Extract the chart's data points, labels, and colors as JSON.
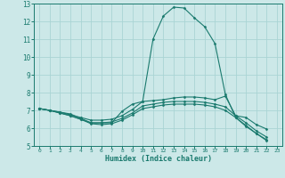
{
  "title": "",
  "xlabel": "Humidex (Indice chaleur)",
  "bg_color": "#cce8e8",
  "grid_color": "#aad4d4",
  "line_color": "#1a7a6e",
  "xlim": [
    -0.5,
    23.5
  ],
  "ylim": [
    5,
    13
  ],
  "xticks": [
    0,
    1,
    2,
    3,
    4,
    5,
    6,
    7,
    8,
    9,
    10,
    11,
    12,
    13,
    14,
    15,
    16,
    17,
    18,
    19,
    20,
    21,
    22,
    23
  ],
  "yticks": [
    5,
    6,
    7,
    8,
    9,
    10,
    11,
    12,
    13
  ],
  "lines": [
    {
      "x": [
        0,
        1,
        2,
        3,
        4,
        5,
        6,
        7,
        8,
        9,
        10,
        11,
        12,
        13,
        14,
        15,
        16,
        17,
        18,
        19,
        20,
        21,
        22
      ],
      "y": [
        7.1,
        7.0,
        6.9,
        6.8,
        6.55,
        6.3,
        6.3,
        6.3,
        6.95,
        7.35,
        7.5,
        11.0,
        12.3,
        12.8,
        12.75,
        12.2,
        11.7,
        10.75,
        7.9,
        6.6,
        6.1,
        5.7,
        5.3
      ]
    },
    {
      "x": [
        0,
        1,
        2,
        3,
        4,
        5,
        6,
        7,
        8,
        9,
        10,
        11,
        12,
        13,
        14,
        15,
        16,
        17,
        18,
        19,
        20,
        21,
        22
      ],
      "y": [
        7.1,
        7.0,
        6.9,
        6.75,
        6.6,
        6.45,
        6.45,
        6.5,
        6.7,
        7.05,
        7.5,
        7.55,
        7.6,
        7.7,
        7.75,
        7.75,
        7.7,
        7.6,
        7.8,
        6.7,
        6.6,
        6.2,
        5.95
      ]
    },
    {
      "x": [
        0,
        1,
        2,
        3,
        4,
        5,
        6,
        7,
        8,
        9,
        10,
        11,
        12,
        13,
        14,
        15,
        16,
        17,
        18,
        19,
        20,
        21,
        22
      ],
      "y": [
        7.1,
        7.0,
        6.85,
        6.7,
        6.5,
        6.3,
        6.3,
        6.35,
        6.55,
        6.85,
        7.25,
        7.35,
        7.45,
        7.5,
        7.5,
        7.5,
        7.45,
        7.35,
        7.2,
        6.7,
        6.3,
        5.85,
        5.5
      ]
    },
    {
      "x": [
        0,
        1,
        2,
        3,
        4,
        5,
        6,
        7,
        8,
        9,
        10,
        11,
        12,
        13,
        14,
        15,
        16,
        17,
        18,
        19,
        20,
        21,
        22
      ],
      "y": [
        7.1,
        7.0,
        6.85,
        6.7,
        6.5,
        6.25,
        6.2,
        6.25,
        6.45,
        6.75,
        7.1,
        7.2,
        7.3,
        7.35,
        7.35,
        7.35,
        7.3,
        7.2,
        7.0,
        6.6,
        6.15,
        5.7,
        5.35
      ]
    }
  ]
}
